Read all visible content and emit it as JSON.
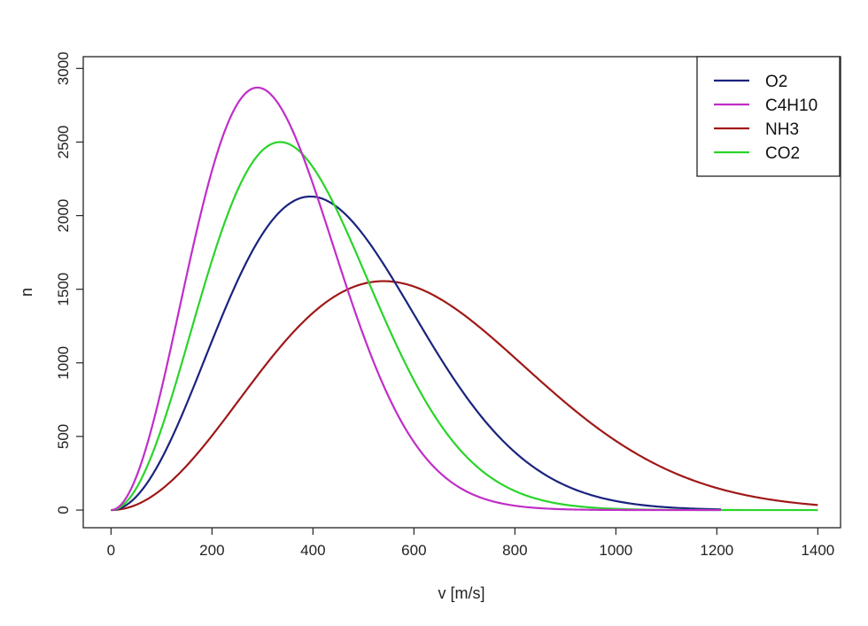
{
  "chart_data": {
    "type": "line",
    "xlabel": "v [m/s]",
    "ylabel": "n",
    "xlim": [
      -55,
      1445
    ],
    "ylim": [
      -120,
      3080
    ],
    "x_ticks": [
      "0",
      "200",
      "400",
      "600",
      "800",
      "1000",
      "1200",
      "1400"
    ],
    "y_ticks": [
      "0",
      "500",
      "1000",
      "1500",
      "2000",
      "2500",
      "3000"
    ],
    "legend_position": "top-right",
    "grid": false,
    "series": [
      {
        "name": "O2",
        "color": "#1a237e",
        "peak_x": 395,
        "peak_y": 2130,
        "x_max": 1210
      },
      {
        "name": "C4H10",
        "color": "#c02ec8",
        "peak_x": 290,
        "peak_y": 2870,
        "x_max": 1210
      },
      {
        "name": "NH3",
        "color": "#a01818",
        "peak_x": 540,
        "peak_y": 1555,
        "x_max": 1400
      },
      {
        "name": "CO2",
        "color": "#2ad42a",
        "peak_x": 335,
        "peak_y": 2500,
        "x_max": 1400
      }
    ]
  }
}
